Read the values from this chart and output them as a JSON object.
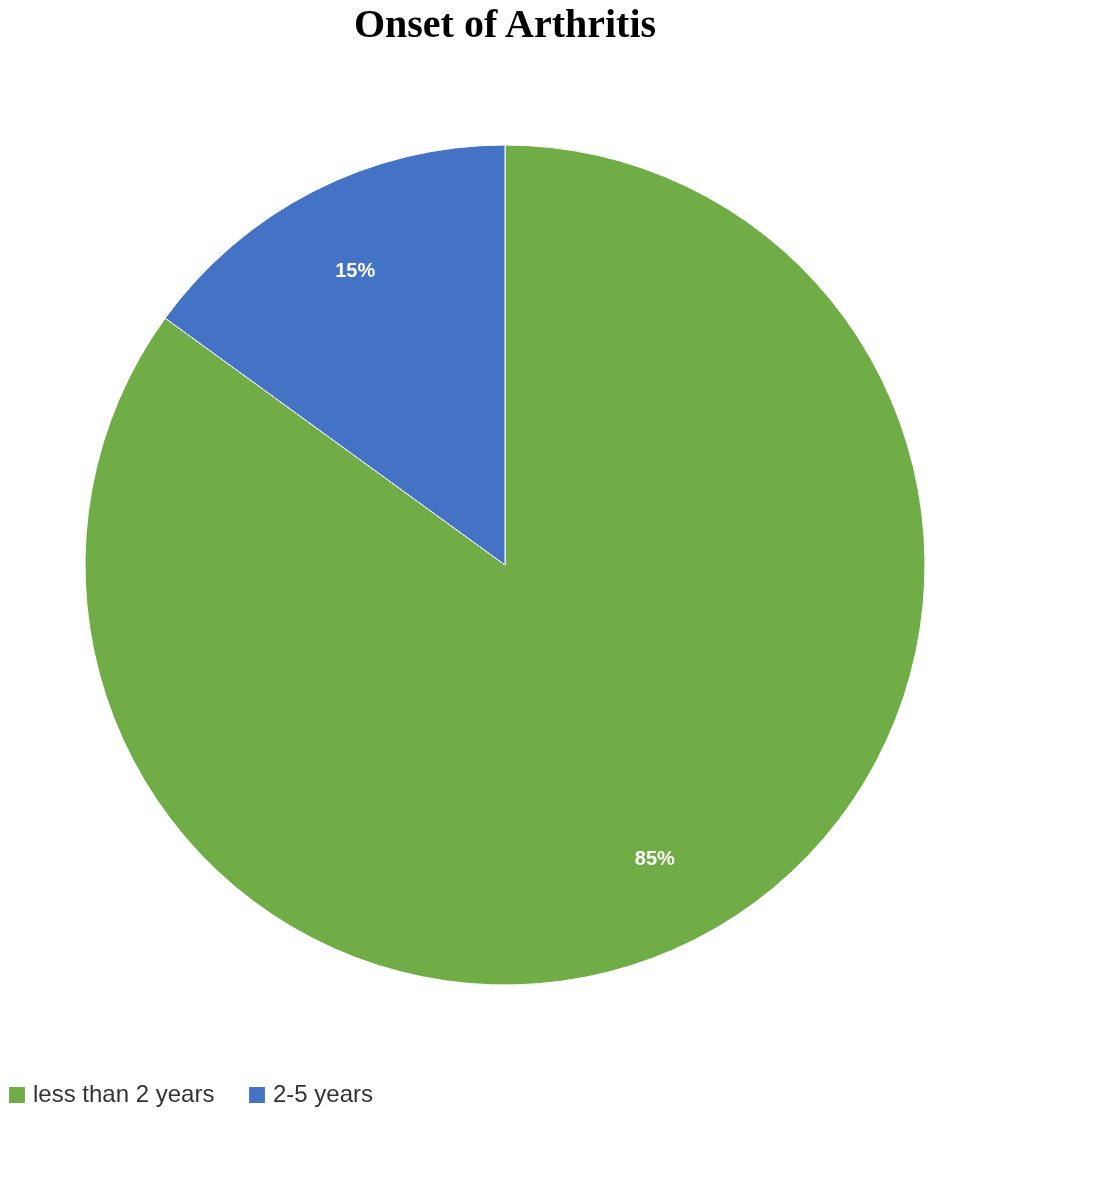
{
  "chart_data": {
    "type": "pie",
    "title": "Onset of Arthritis",
    "categories": [
      "less than 2 years",
      "2-5 years"
    ],
    "values": [
      85,
      15
    ],
    "colors": [
      "#70ad47",
      "#4472c4"
    ],
    "value_labels": [
      "85%",
      "15%"
    ],
    "legend": "bottom"
  }
}
